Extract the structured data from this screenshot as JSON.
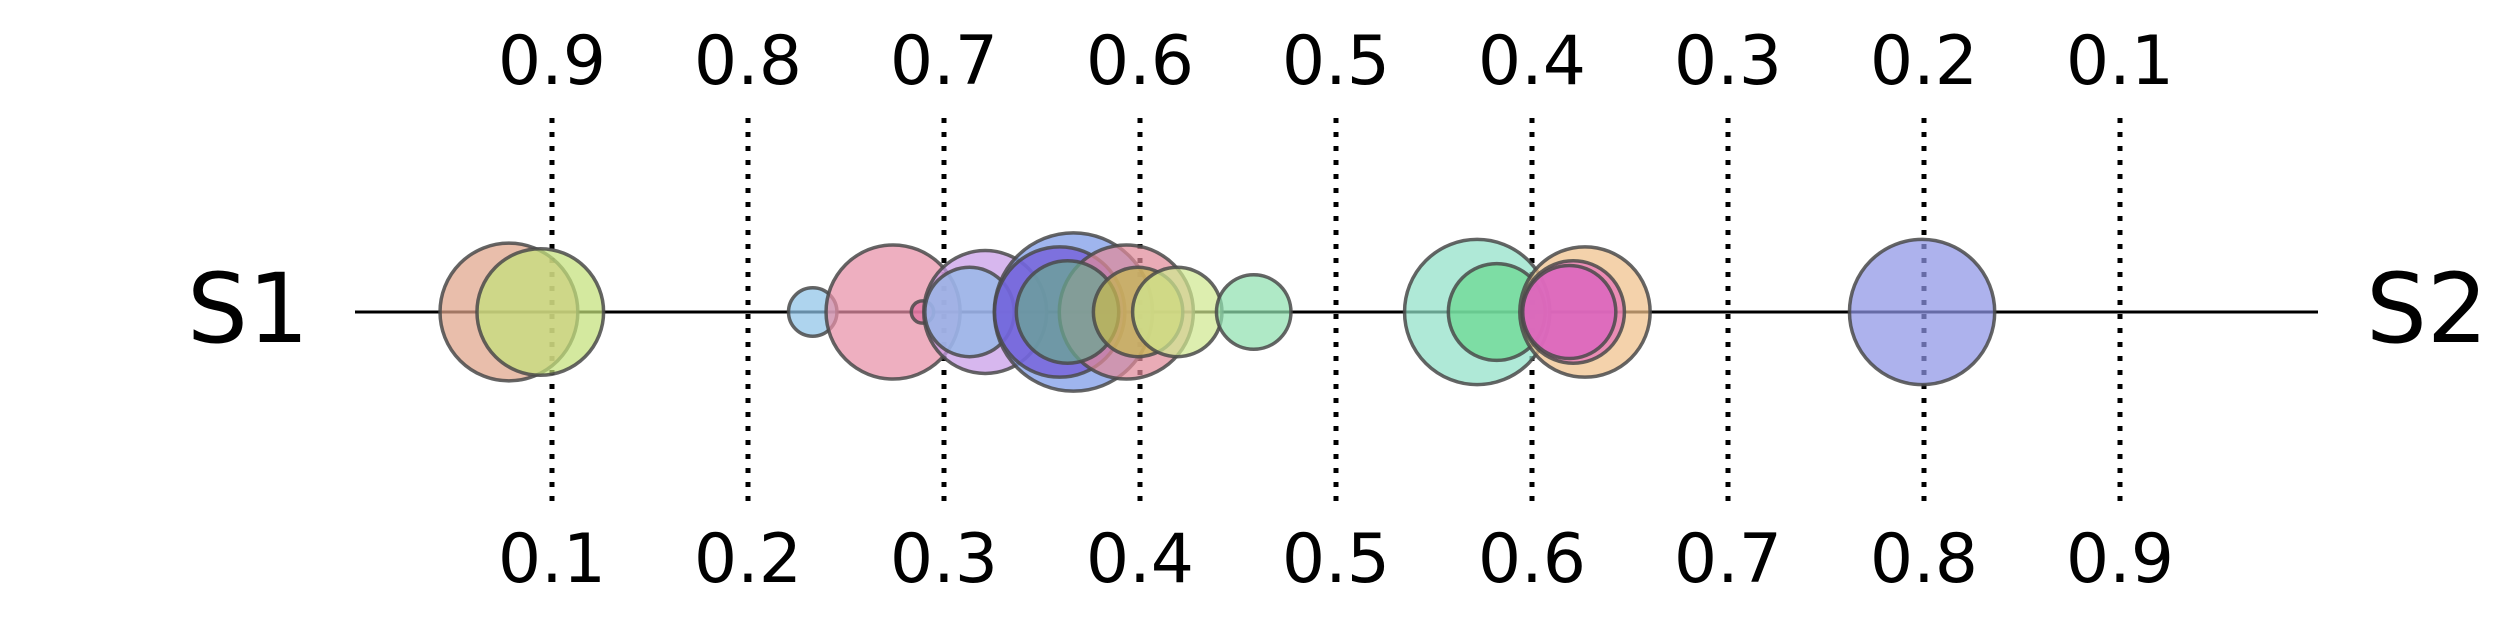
{
  "chart_data": {
    "type": "scatter",
    "left_label": "S1",
    "right_label": "S2",
    "xlim": [
      0.0,
      1.0
    ],
    "grid": "dotted vertical lines at tick positions",
    "top_ticks": [
      "0.9",
      "0.8",
      "0.7",
      "0.6",
      "0.5",
      "0.4",
      "0.3",
      "0.2",
      "0.1"
    ],
    "bottom_ticks": [
      "0.1",
      "0.2",
      "0.3",
      "0.4",
      "0.5",
      "0.6",
      "0.7",
      "0.8",
      "0.9"
    ],
    "tick_values": [
      0.1,
      0.2,
      0.3,
      0.4,
      0.5,
      0.6,
      0.7,
      0.8,
      0.9
    ],
    "points": [
      {
        "x": 0.077,
        "size": 0.074,
        "color": "#e0a58a"
      },
      {
        "x": 0.093,
        "size": 0.068,
        "color": "#c4e07a"
      },
      {
        "x": 0.232,
        "size": 0.026,
        "color": "#8fc3e8"
      },
      {
        "x": 0.273,
        "size": 0.072,
        "color": "#e890a8"
      },
      {
        "x": 0.288,
        "size": 0.012,
        "color": "#e070a0"
      },
      {
        "x": 0.32,
        "size": 0.066,
        "color": "#c89be8"
      },
      {
        "x": 0.312,
        "size": 0.048,
        "color": "#8fb8e8"
      },
      {
        "x": 0.365,
        "size": 0.085,
        "color": "#7a98e8"
      },
      {
        "x": 0.358,
        "size": 0.07,
        "color": "#7058d8"
      },
      {
        "x": 0.392,
        "size": 0.072,
        "color": "#e08a9a"
      },
      {
        "x": 0.362,
        "size": 0.055,
        "color": "#6aa890"
      },
      {
        "x": 0.398,
        "size": 0.048,
        "color": "#c8b850"
      },
      {
        "x": 0.418,
        "size": 0.048,
        "color": "#d0e890"
      },
      {
        "x": 0.457,
        "size": 0.04,
        "color": "#90e0b0"
      },
      {
        "x": 0.571,
        "size": 0.078,
        "color": "#90e0c8"
      },
      {
        "x": 0.581,
        "size": 0.052,
        "color": "#6ad890"
      },
      {
        "x": 0.626,
        "size": 0.07,
        "color": "#f0c08a"
      },
      {
        "x": 0.62,
        "size": 0.055,
        "color": "#e870b8"
      },
      {
        "x": 0.618,
        "size": 0.05,
        "color": "#d860c0"
      },
      {
        "x": 0.798,
        "size": 0.078,
        "color": "#8e94e6"
      }
    ]
  }
}
